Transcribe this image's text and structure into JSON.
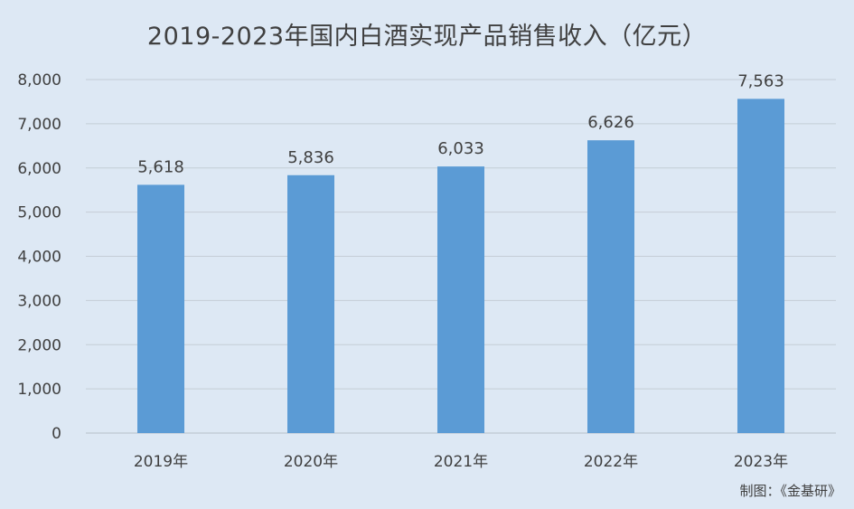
{
  "chart_data": {
    "type": "bar",
    "title": "2019-2023年国内白酒实现产品销售收入（亿元）",
    "categories": [
      "2019年",
      "2020年",
      "2021年",
      "2022年",
      "2023年"
    ],
    "values": [
      5618,
      5836,
      6033,
      6626,
      7563
    ],
    "value_labels": [
      "5,618",
      "5,836",
      "6,033",
      "6,626",
      "7,563"
    ],
    "yticks": [
      "0",
      "1,000",
      "2,000",
      "3,000",
      "4,000",
      "5,000",
      "6,000",
      "7,000",
      "8,000"
    ],
    "ylim": [
      0,
      8000
    ],
    "grid": true,
    "legend": "none",
    "bar_color": "#5b9bd5"
  },
  "credit": "制图：《金基研》"
}
